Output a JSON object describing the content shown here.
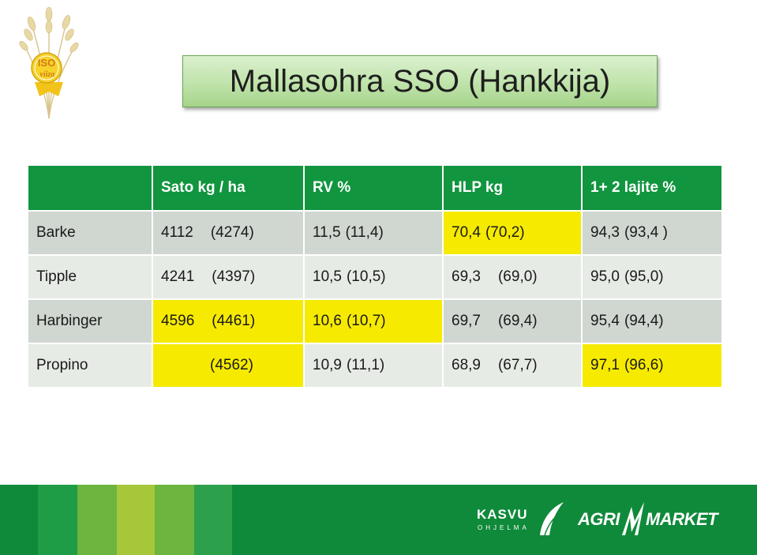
{
  "logo": {
    "text": "ISO\nviiza"
  },
  "title": "Mallasohra SSO (Hankkija)",
  "table": {
    "headers": [
      "",
      "Sato kg / ha",
      "RV %",
      "HLP kg",
      "1+ 2 lajite %"
    ],
    "rows": [
      {
        "label": "Barke",
        "cells": [
          {
            "value": "4112",
            "prev": "(4274)"
          },
          {
            "value": "11,5",
            "prev": "(11,4)"
          },
          {
            "value": "70,4",
            "prev": "(70,2)",
            "highlight": true
          },
          {
            "value": "94,3",
            "prev": "(93,4 )"
          }
        ]
      },
      {
        "label": "Tipple",
        "cells": [
          {
            "value": "4241",
            "prev": "(4397)"
          },
          {
            "value": "10,5",
            "prev": "(10,5)"
          },
          {
            "value": "69,3",
            "prev": "(69,0)"
          },
          {
            "value": "95,0",
            "prev": "(95,0)"
          }
        ]
      },
      {
        "label": "Harbinger",
        "cells": [
          {
            "value": "4596",
            "prev": "(4461)",
            "highlight": true
          },
          {
            "value": "10,6",
            "prev": "(10,7)",
            "highlight": true
          },
          {
            "value": "69,7",
            "prev": "(69,4)"
          },
          {
            "value": "95,4",
            "prev": "(94,4)"
          }
        ]
      },
      {
        "label": "Propino",
        "cells": [
          {
            "value": "",
            "prev": "(4562)",
            "highlight": true
          },
          {
            "value": "10,9",
            "prev": "(11,1)"
          },
          {
            "value": "68,9",
            "prev": "(67,7)"
          },
          {
            "value": "97,1",
            "prev": "(96,6)",
            "highlight": true
          }
        ]
      }
    ]
  },
  "footer": {
    "brand1": "KASVU",
    "brand1_sub": "OHJELMA",
    "brand2_a": "AGRI",
    "brand2_b": "MARKET",
    "colors": {
      "base": "#0f8a3a",
      "highlight": "#f6ea00",
      "header": "#11953f"
    }
  }
}
